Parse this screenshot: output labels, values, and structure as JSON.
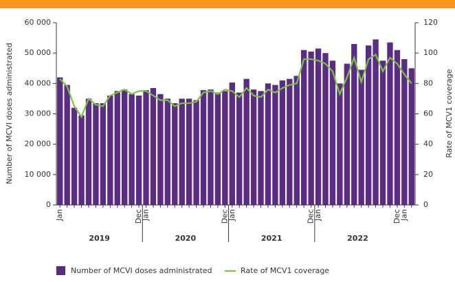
{
  "chart_data": {
    "type": "bar-line",
    "y_label": "Number of MCVI doses administrated",
    "y2_label": "Rate of MCV1 coverage",
    "categories": [
      "Jan",
      null,
      null,
      null,
      null,
      null,
      null,
      null,
      null,
      null,
      null,
      "Dec",
      "Jan",
      null,
      null,
      null,
      null,
      null,
      null,
      null,
      null,
      null,
      null,
      "Dec",
      "Jan",
      null,
      null,
      null,
      null,
      null,
      null,
      null,
      null,
      null,
      null,
      "Dec",
      "Jan",
      null,
      null,
      null,
      null,
      null,
      null,
      null,
      null,
      null,
      null,
      "Dec",
      "Jan",
      null
    ],
    "years": [
      "2019",
      "2020",
      "2021",
      "2022"
    ],
    "series": [
      {
        "name": "Number of MCVI doses administrated",
        "type": "bar",
        "color": "#5b2c83",
        "values": [
          42000,
          39500,
          32000,
          29500,
          35000,
          33500,
          33500,
          36000,
          37500,
          38000,
          36500,
          36000,
          37800,
          38500,
          36500,
          35000,
          33500,
          35000,
          35000,
          34500,
          37800,
          38000,
          37000,
          37500,
          40300,
          37000,
          41500,
          38000,
          37500,
          40000,
          39500,
          41000,
          41500,
          42500,
          51000,
          50500,
          51500,
          50000,
          47500,
          40000,
          46500,
          53000,
          44500,
          52500,
          54500,
          47500,
          53500,
          51000,
          48000,
          45000
        ]
      },
      {
        "name": "Rate of MCV1 coverage",
        "type": "line",
        "axis": "y2",
        "color": "#7dc243",
        "values": [
          83,
          78,
          65,
          58,
          70,
          66,
          65,
          72,
          74,
          76,
          73,
          75,
          75,
          72,
          69,
          69,
          65,
          67,
          67,
          68,
          74,
          75,
          73,
          76,
          75,
          71,
          77,
          72,
          71,
          76,
          74,
          77,
          79,
          80,
          96,
          96,
          95,
          93,
          88,
          73,
          84,
          97,
          81,
          96,
          99,
          88,
          97,
          93,
          86,
          80
        ]
      }
    ],
    "ylim": [
      0,
      60000
    ],
    "yticks": [
      0,
      {
        "value": 10000,
        "label": "10 000"
      },
      {
        "value": 20000,
        "label": "20 000"
      },
      {
        "value": 30000,
        "label": "30 000"
      },
      {
        "value": 40000,
        "label": "40 000"
      },
      {
        "value": 50000,
        "label": "50 000"
      },
      {
        "value": 60000,
        "label": "60 000"
      }
    ],
    "y2lim": [
      0,
      120
    ],
    "y2ticks": [
      0,
      20,
      40,
      60,
      80,
      100,
      120
    ]
  }
}
